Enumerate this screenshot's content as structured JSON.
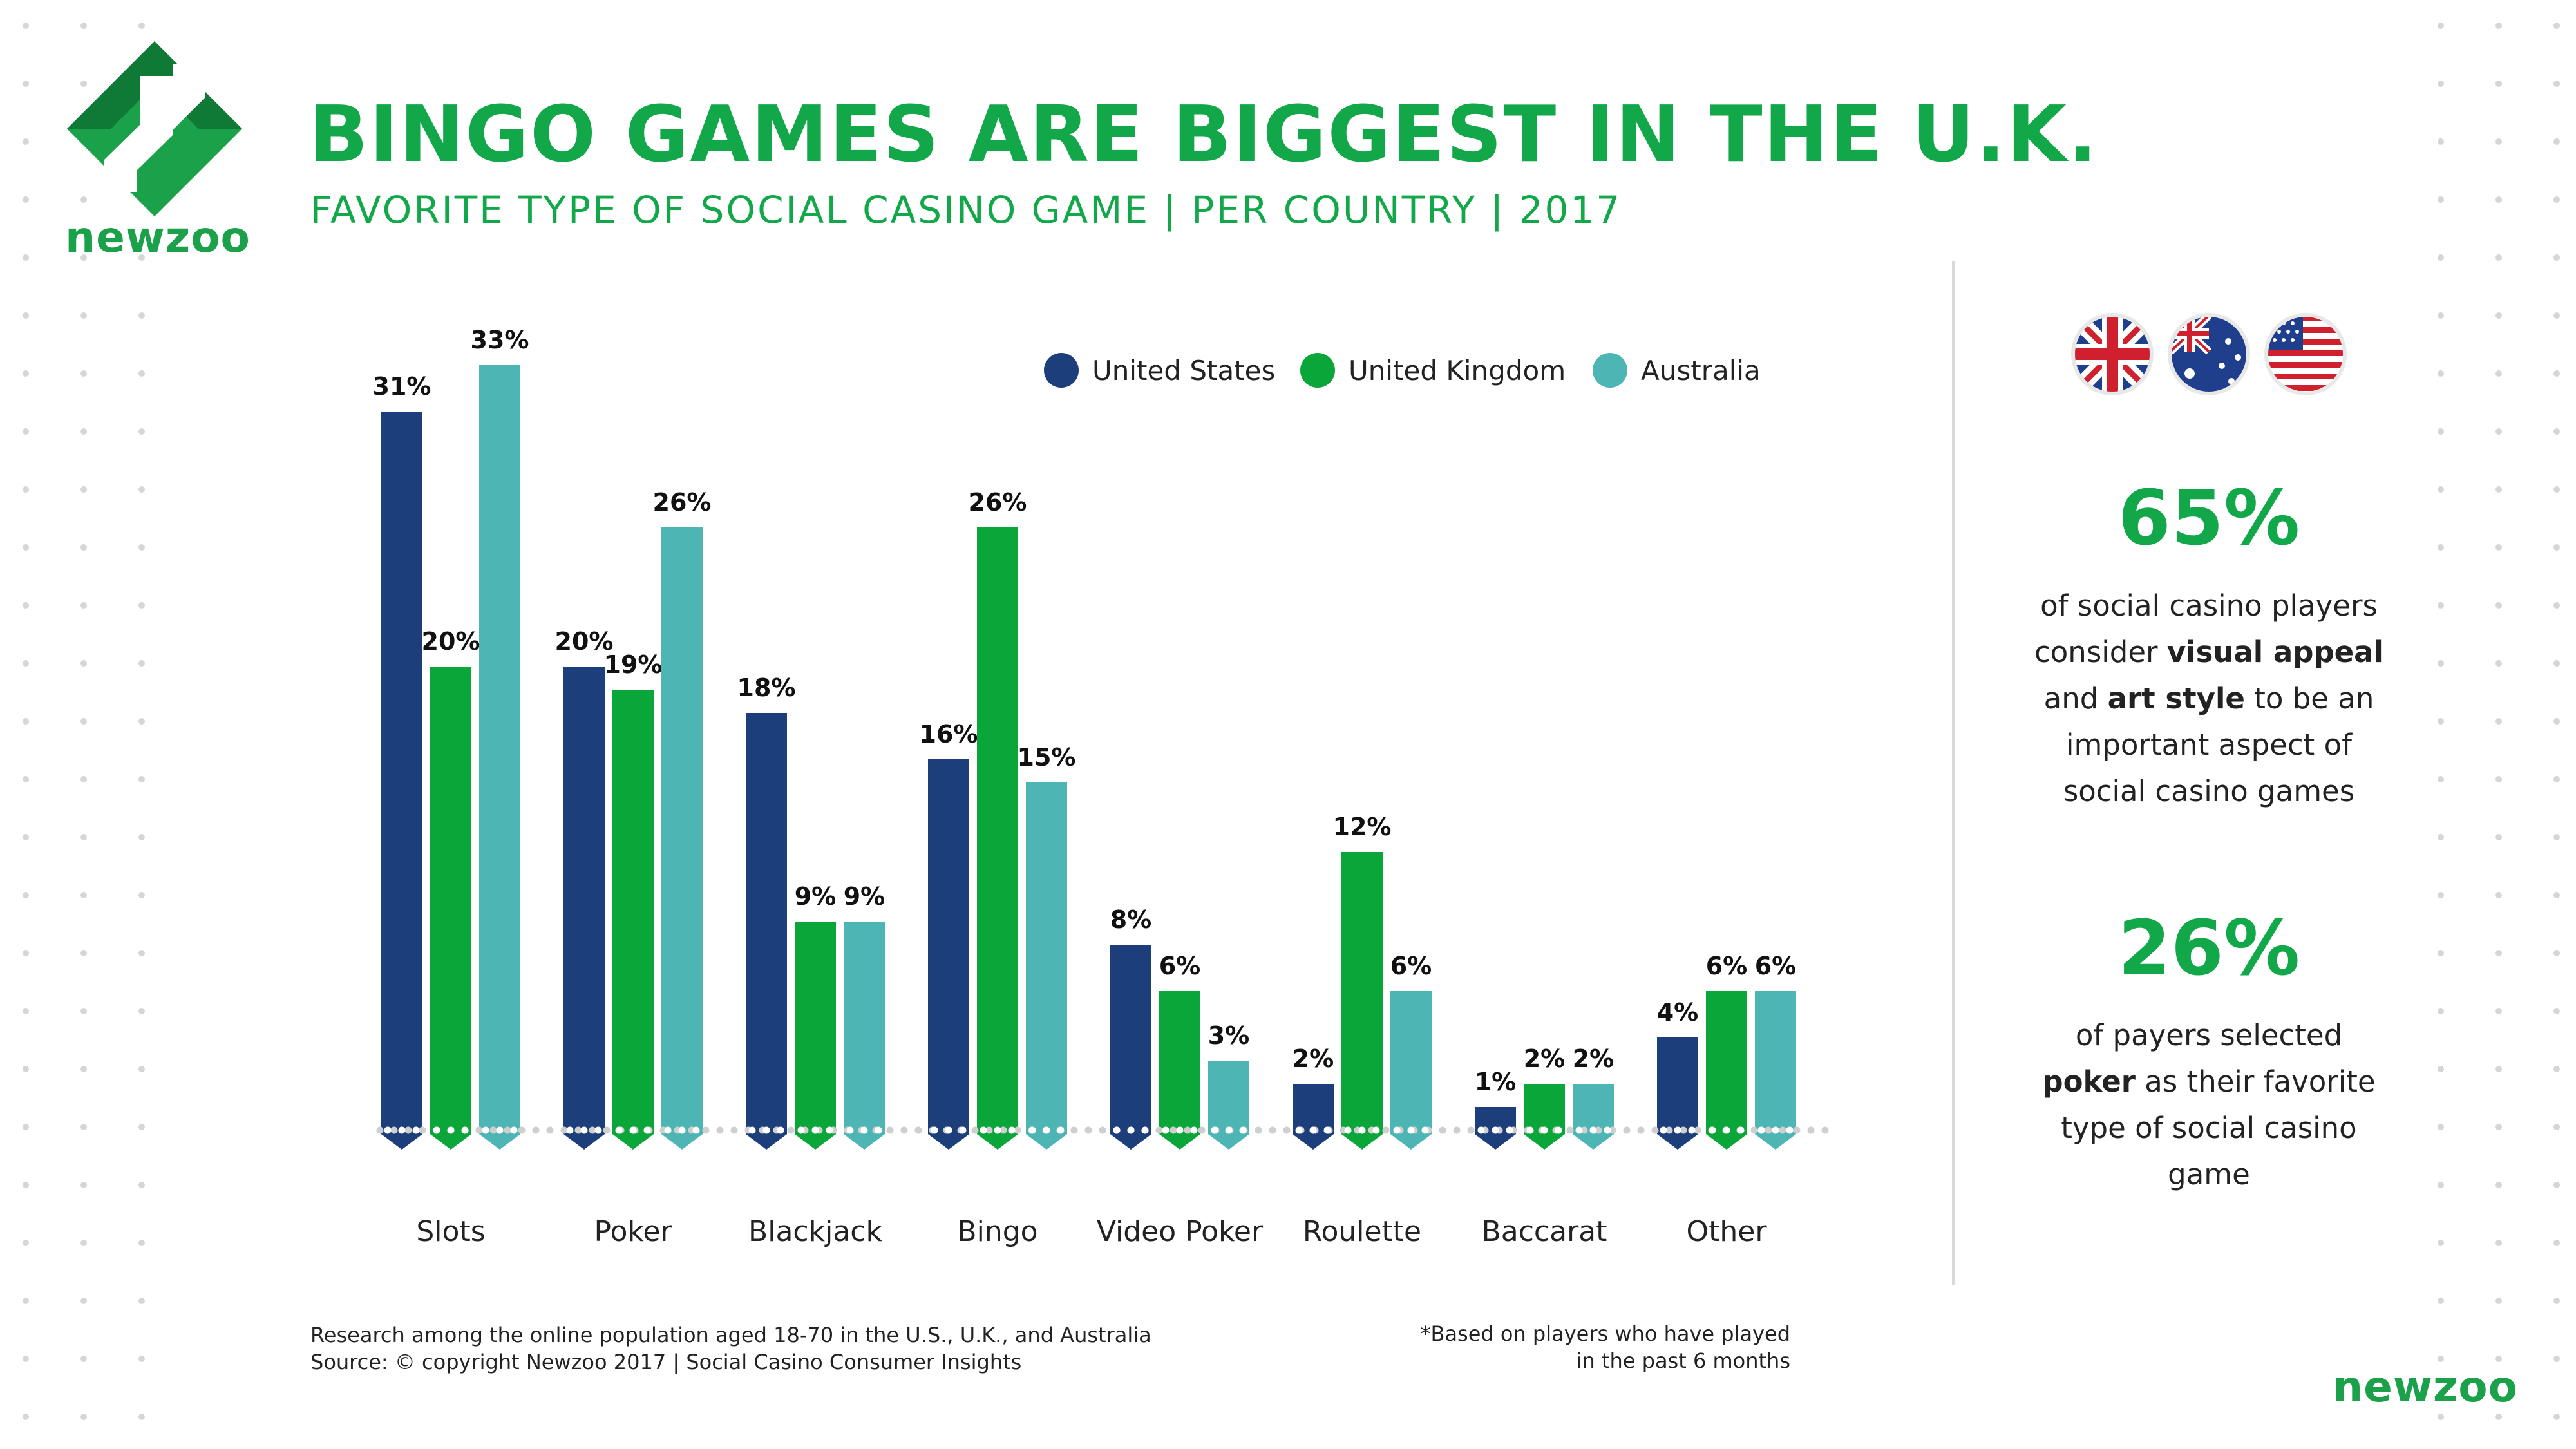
{
  "brand": {
    "logo_text": "newzoo",
    "logo_text_bottom": "newzoo",
    "green": "#12a84a",
    "dark_green": "#0f6b32"
  },
  "header": {
    "title": "BINGO GAMES ARE BIGGEST IN THE U.K.",
    "subtitle": "FAVORITE TYPE OF SOCIAL CASINO GAME | PER COUNTRY | 2017"
  },
  "chart_data": {
    "type": "bar",
    "categories": [
      "Slots",
      "Poker",
      "Blackjack",
      "Bingo",
      "Video Poker",
      "Roulette",
      "Baccarat",
      "Other"
    ],
    "series": [
      {
        "name": "United States",
        "color": "#1c3f7c",
        "values": [
          31,
          20,
          18,
          16,
          8,
          2,
          1,
          4
        ]
      },
      {
        "name": "United Kingdom",
        "color": "#0aa63a",
        "values": [
          20,
          19,
          9,
          26,
          6,
          12,
          2,
          6
        ]
      },
      {
        "name": "Australia",
        "color": "#4db6b4",
        "values": [
          33,
          26,
          9,
          15,
          3,
          6,
          2,
          6
        ]
      }
    ],
    "value_suffix": "%",
    "ylim": [
      0,
      35
    ],
    "legend": "top-right"
  },
  "sidebar": {
    "flags": [
      "uk-flag-icon",
      "australia-flag-icon",
      "us-flag-icon"
    ],
    "stat1": {
      "value": "65%",
      "text_1": "of social casino players",
      "text_2a": "consider ",
      "text_2b": "visual appeal",
      "text_3a": "and ",
      "text_3b": "art style",
      "text_3c": " to be an",
      "text_4": "important aspect of",
      "text_5": "social casino games"
    },
    "stat2": {
      "value": "26%",
      "text_1": "of payers selected",
      "text_2a": "poker",
      "text_2b": " as their favorite",
      "text_3": "type of social casino",
      "text_4": "game"
    }
  },
  "footer": {
    "research": "Research among the online population aged 18-70 in the U.S., U.K., and Australia",
    "source": "Source: © copyright Newzoo 2017 | Social Casino Consumer Insights",
    "note_1": "*Based on players who have played",
    "note_2": "in the past 6 months"
  }
}
